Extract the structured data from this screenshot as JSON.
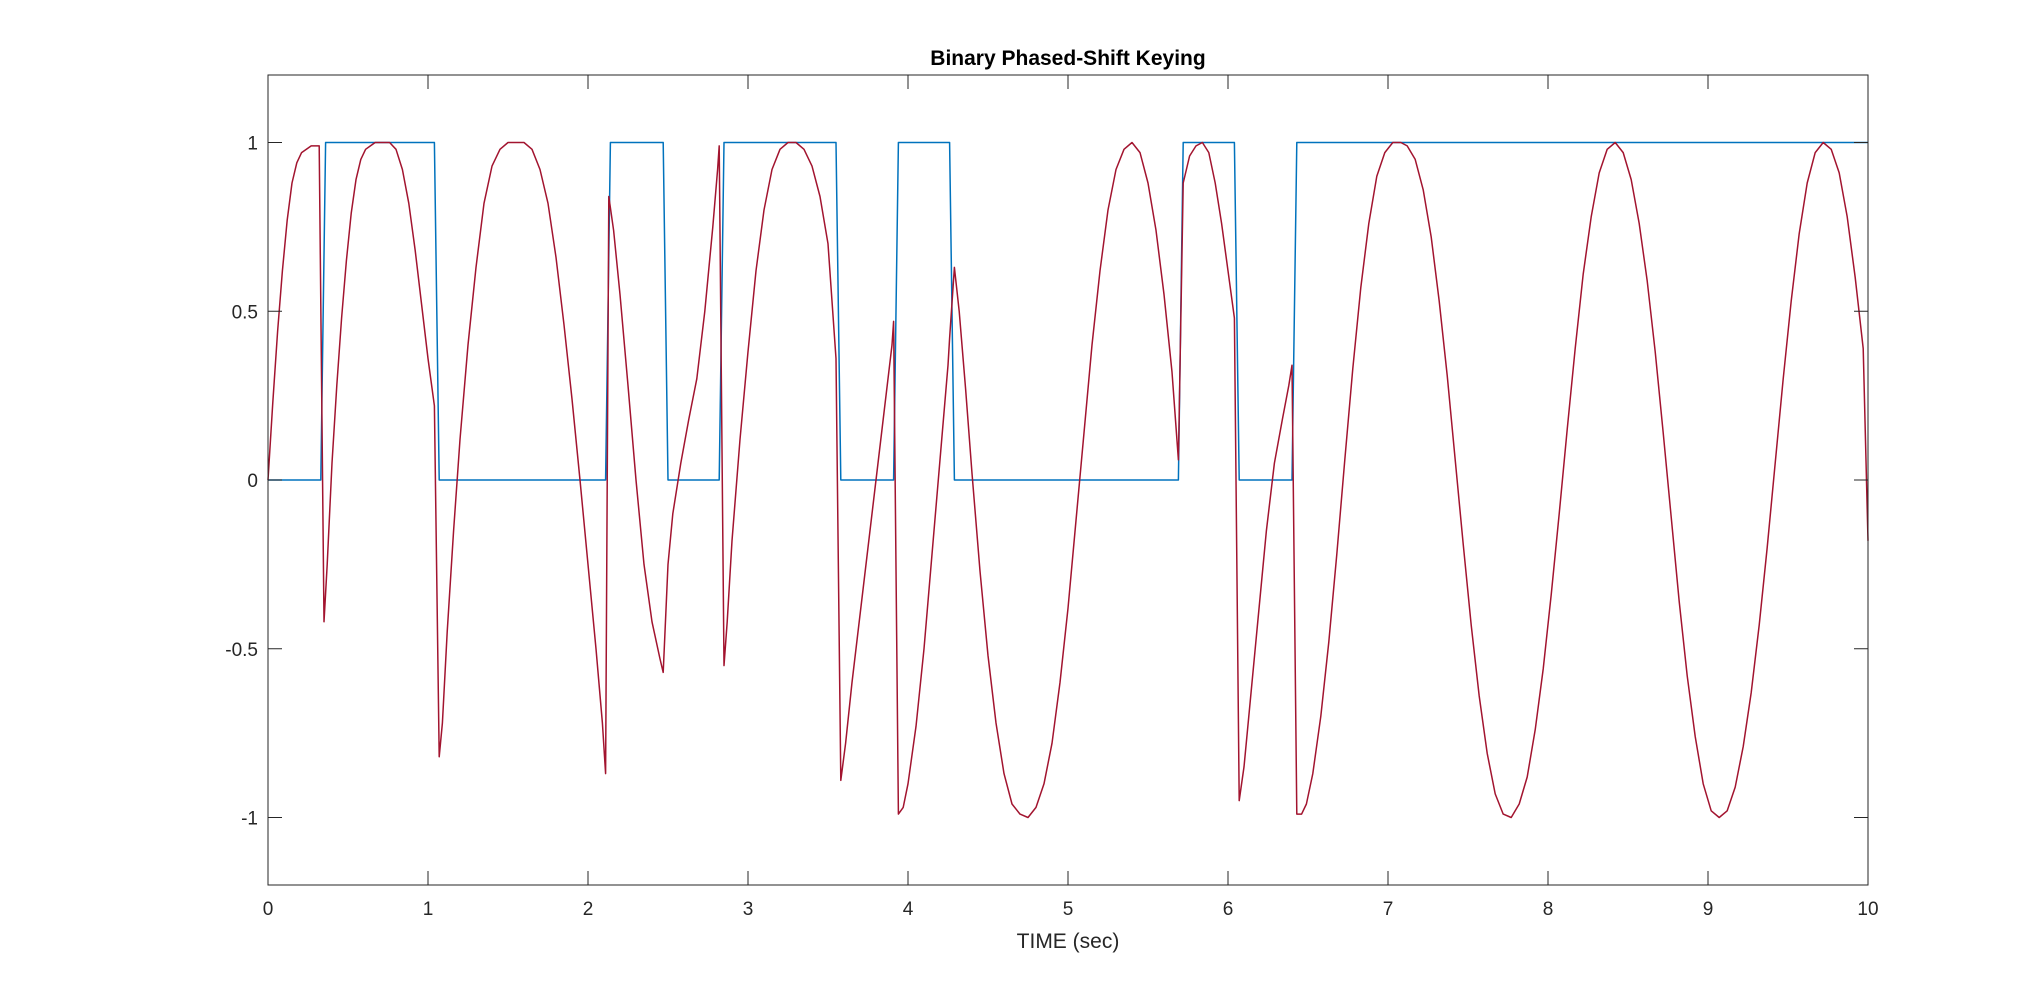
{
  "chart_data": {
    "type": "line",
    "title": "Binary Phased-Shift Keying",
    "xlabel": "TIME (sec)",
    "ylabel": "",
    "xlim": [
      0,
      10
    ],
    "ylim": [
      -1.2,
      1.2
    ],
    "xticks": [
      0,
      1,
      2,
      3,
      4,
      5,
      6,
      7,
      8,
      9,
      10
    ],
    "xtick_labels": [
      "0",
      "1",
      "2",
      "3",
      "4",
      "5",
      "6",
      "7",
      "8",
      "9",
      "10"
    ],
    "yticks": [
      -1,
      -0.5,
      0,
      0.5,
      1
    ],
    "ytick_labels": [
      "-1",
      "-0.5",
      "0",
      "0.5",
      "1"
    ],
    "grid": false,
    "series": [
      {
        "color": "#0072BD",
        "style": "step",
        "points": [
          [
            0,
            0
          ],
          [
            0.33,
            0
          ],
          [
            0.36,
            1
          ],
          [
            1.04,
            1
          ],
          [
            1.07,
            0
          ],
          [
            2.11,
            0
          ],
          [
            2.14,
            1
          ],
          [
            2.47,
            1
          ],
          [
            2.5,
            0
          ],
          [
            2.82,
            0
          ],
          [
            2.85,
            1
          ],
          [
            3.55,
            1
          ],
          [
            3.58,
            0
          ],
          [
            3.91,
            0
          ],
          [
            3.94,
            1
          ],
          [
            4.26,
            1
          ],
          [
            4.29,
            0
          ],
          [
            5.69,
            0
          ],
          [
            5.72,
            1
          ],
          [
            6.04,
            1
          ],
          [
            6.07,
            0
          ],
          [
            6.4,
            0
          ],
          [
            6.43,
            1
          ],
          [
            10,
            1
          ]
        ]
      },
      {
        "color": "#A2142F",
        "style": "line",
        "points": [
          [
            0,
            0
          ],
          [
            0.03,
            0.23
          ],
          [
            0.06,
            0.44
          ],
          [
            0.09,
            0.62
          ],
          [
            0.12,
            0.77
          ],
          [
            0.15,
            0.88
          ],
          [
            0.18,
            0.94
          ],
          [
            0.21,
            0.97
          ],
          [
            0.24,
            0.98
          ],
          [
            0.27,
            0.99
          ],
          [
            0.3,
            0.99
          ],
          [
            0.32,
            0.99
          ],
          [
            0.35,
            -0.42
          ],
          [
            0.37,
            -0.25
          ],
          [
            0.4,
            0.05
          ],
          [
            0.43,
            0.28
          ],
          [
            0.46,
            0.48
          ],
          [
            0.49,
            0.65
          ],
          [
            0.52,
            0.79
          ],
          [
            0.55,
            0.89
          ],
          [
            0.58,
            0.95
          ],
          [
            0.61,
            0.98
          ],
          [
            0.64,
            0.99
          ],
          [
            0.67,
            1.0
          ],
          [
            0.71,
            1.0
          ],
          [
            0.76,
            1.0
          ],
          [
            0.8,
            0.98
          ],
          [
            0.84,
            0.92
          ],
          [
            0.88,
            0.82
          ],
          [
            0.92,
            0.68
          ],
          [
            0.96,
            0.52
          ],
          [
            1.0,
            0.36
          ],
          [
            1.04,
            0.22
          ],
          [
            1.07,
            -0.82
          ],
          [
            1.09,
            -0.72
          ],
          [
            1.12,
            -0.45
          ],
          [
            1.16,
            -0.15
          ],
          [
            1.2,
            0.12
          ],
          [
            1.25,
            0.4
          ],
          [
            1.3,
            0.63
          ],
          [
            1.35,
            0.82
          ],
          [
            1.4,
            0.93
          ],
          [
            1.45,
            0.98
          ],
          [
            1.5,
            1.0
          ],
          [
            1.55,
            1.0
          ],
          [
            1.6,
            1.0
          ],
          [
            1.65,
            0.98
          ],
          [
            1.7,
            0.92
          ],
          [
            1.75,
            0.82
          ],
          [
            1.8,
            0.66
          ],
          [
            1.85,
            0.46
          ],
          [
            1.9,
            0.24
          ],
          [
            1.95,
            0.0
          ],
          [
            2.0,
            -0.25
          ],
          [
            2.05,
            -0.5
          ],
          [
            2.09,
            -0.72
          ],
          [
            2.11,
            -0.87
          ],
          [
            2.13,
            0.84
          ],
          [
            2.16,
            0.74
          ],
          [
            2.2,
            0.55
          ],
          [
            2.25,
            0.28
          ],
          [
            2.3,
            0.0
          ],
          [
            2.35,
            -0.25
          ],
          [
            2.4,
            -0.42
          ],
          [
            2.45,
            -0.53
          ],
          [
            2.47,
            -0.57
          ],
          [
            2.5,
            -0.25
          ],
          [
            2.53,
            -0.1
          ],
          [
            2.58,
            0.05
          ],
          [
            2.63,
            0.18
          ],
          [
            2.68,
            0.3
          ],
          [
            2.73,
            0.5
          ],
          [
            2.78,
            0.75
          ],
          [
            2.81,
            0.92
          ],
          [
            2.82,
            0.99
          ],
          [
            2.85,
            -0.55
          ],
          [
            2.87,
            -0.42
          ],
          [
            2.9,
            -0.18
          ],
          [
            2.95,
            0.12
          ],
          [
            3.0,
            0.38
          ],
          [
            3.05,
            0.62
          ],
          [
            3.1,
            0.8
          ],
          [
            3.15,
            0.92
          ],
          [
            3.2,
            0.98
          ],
          [
            3.25,
            1.0
          ],
          [
            3.3,
            1.0
          ],
          [
            3.35,
            0.98
          ],
          [
            3.4,
            0.93
          ],
          [
            3.45,
            0.84
          ],
          [
            3.5,
            0.7
          ],
          [
            3.55,
            0.36
          ],
          [
            3.58,
            -0.89
          ],
          [
            3.61,
            -0.78
          ],
          [
            3.65,
            -0.6
          ],
          [
            3.7,
            -0.4
          ],
          [
            3.75,
            -0.2
          ],
          [
            3.8,
            0.0
          ],
          [
            3.85,
            0.2
          ],
          [
            3.9,
            0.4
          ],
          [
            3.91,
            0.47
          ],
          [
            3.94,
            -0.99
          ],
          [
            3.97,
            -0.97
          ],
          [
            4.0,
            -0.9
          ],
          [
            4.05,
            -0.73
          ],
          [
            4.1,
            -0.5
          ],
          [
            4.15,
            -0.22
          ],
          [
            4.2,
            0.06
          ],
          [
            4.25,
            0.34
          ],
          [
            4.26,
            0.42
          ],
          [
            4.29,
            0.63
          ],
          [
            4.32,
            0.5
          ],
          [
            4.36,
            0.27
          ],
          [
            4.4,
            0.02
          ],
          [
            4.45,
            -0.27
          ],
          [
            4.5,
            -0.52
          ],
          [
            4.55,
            -0.72
          ],
          [
            4.6,
            -0.87
          ],
          [
            4.65,
            -0.96
          ],
          [
            4.7,
            -0.99
          ],
          [
            4.75,
            -1.0
          ],
          [
            4.8,
            -0.97
          ],
          [
            4.85,
            -0.9
          ],
          [
            4.9,
            -0.78
          ],
          [
            4.95,
            -0.6
          ],
          [
            5.0,
            -0.38
          ],
          [
            5.05,
            -0.12
          ],
          [
            5.1,
            0.14
          ],
          [
            5.15,
            0.4
          ],
          [
            5.2,
            0.62
          ],
          [
            5.25,
            0.8
          ],
          [
            5.3,
            0.92
          ],
          [
            5.35,
            0.98
          ],
          [
            5.4,
            1.0
          ],
          [
            5.45,
            0.97
          ],
          [
            5.5,
            0.88
          ],
          [
            5.55,
            0.74
          ],
          [
            5.6,
            0.55
          ],
          [
            5.65,
            0.32
          ],
          [
            5.69,
            0.06
          ],
          [
            5.72,
            0.88
          ],
          [
            5.76,
            0.96
          ],
          [
            5.8,
            0.99
          ],
          [
            5.84,
            1.0
          ],
          [
            5.88,
            0.97
          ],
          [
            5.92,
            0.88
          ],
          [
            5.96,
            0.76
          ],
          [
            6.0,
            0.62
          ],
          [
            6.04,
            0.48
          ],
          [
            6.07,
            -0.95
          ],
          [
            6.1,
            -0.85
          ],
          [
            6.14,
            -0.65
          ],
          [
            6.19,
            -0.4
          ],
          [
            6.24,
            -0.15
          ],
          [
            6.29,
            0.05
          ],
          [
            6.34,
            0.18
          ],
          [
            6.38,
            0.28
          ],
          [
            6.4,
            0.34
          ],
          [
            6.43,
            -0.99
          ],
          [
            6.46,
            -0.99
          ],
          [
            6.49,
            -0.96
          ],
          [
            6.53,
            -0.87
          ],
          [
            6.58,
            -0.7
          ],
          [
            6.63,
            -0.48
          ],
          [
            6.68,
            -0.22
          ],
          [
            6.73,
            0.06
          ],
          [
            6.78,
            0.33
          ],
          [
            6.83,
            0.57
          ],
          [
            6.88,
            0.76
          ],
          [
            6.93,
            0.9
          ],
          [
            6.98,
            0.97
          ],
          [
            7.03,
            1.0
          ],
          [
            7.08,
            1.0
          ],
          [
            7.12,
            0.99
          ],
          [
            7.17,
            0.95
          ],
          [
            7.22,
            0.86
          ],
          [
            7.27,
            0.72
          ],
          [
            7.32,
            0.53
          ],
          [
            7.37,
            0.31
          ],
          [
            7.42,
            0.06
          ],
          [
            7.47,
            -0.19
          ],
          [
            7.52,
            -0.43
          ],
          [
            7.57,
            -0.64
          ],
          [
            7.62,
            -0.81
          ],
          [
            7.67,
            -0.93
          ],
          [
            7.72,
            -0.99
          ],
          [
            7.77,
            -1.0
          ],
          [
            7.82,
            -0.96
          ],
          [
            7.87,
            -0.88
          ],
          [
            7.92,
            -0.74
          ],
          [
            7.97,
            -0.56
          ],
          [
            8.02,
            -0.34
          ],
          [
            8.07,
            -0.1
          ],
          [
            8.12,
            0.15
          ],
          [
            8.17,
            0.39
          ],
          [
            8.22,
            0.61
          ],
          [
            8.27,
            0.78
          ],
          [
            8.32,
            0.91
          ],
          [
            8.37,
            0.98
          ],
          [
            8.42,
            1.0
          ],
          [
            8.47,
            0.97
          ],
          [
            8.52,
            0.89
          ],
          [
            8.57,
            0.76
          ],
          [
            8.62,
            0.59
          ],
          [
            8.67,
            0.38
          ],
          [
            8.72,
            0.14
          ],
          [
            8.77,
            -0.11
          ],
          [
            8.82,
            -0.36
          ],
          [
            8.87,
            -0.58
          ],
          [
            8.92,
            -0.76
          ],
          [
            8.97,
            -0.9
          ],
          [
            9.02,
            -0.98
          ],
          [
            9.07,
            -1.0
          ],
          [
            9.12,
            -0.98
          ],
          [
            9.17,
            -0.91
          ],
          [
            9.22,
            -0.79
          ],
          [
            9.27,
            -0.63
          ],
          [
            9.32,
            -0.43
          ],
          [
            9.37,
            -0.2
          ],
          [
            9.42,
            0.05
          ],
          [
            9.47,
            0.3
          ],
          [
            9.52,
            0.53
          ],
          [
            9.57,
            0.73
          ],
          [
            9.62,
            0.88
          ],
          [
            9.67,
            0.97
          ],
          [
            9.72,
            1.0
          ],
          [
            9.77,
            0.98
          ],
          [
            9.82,
            0.91
          ],
          [
            9.87,
            0.78
          ],
          [
            9.92,
            0.6
          ],
          [
            9.97,
            0.39
          ],
          [
            10.0,
            -0.18
          ]
        ]
      }
    ]
  }
}
